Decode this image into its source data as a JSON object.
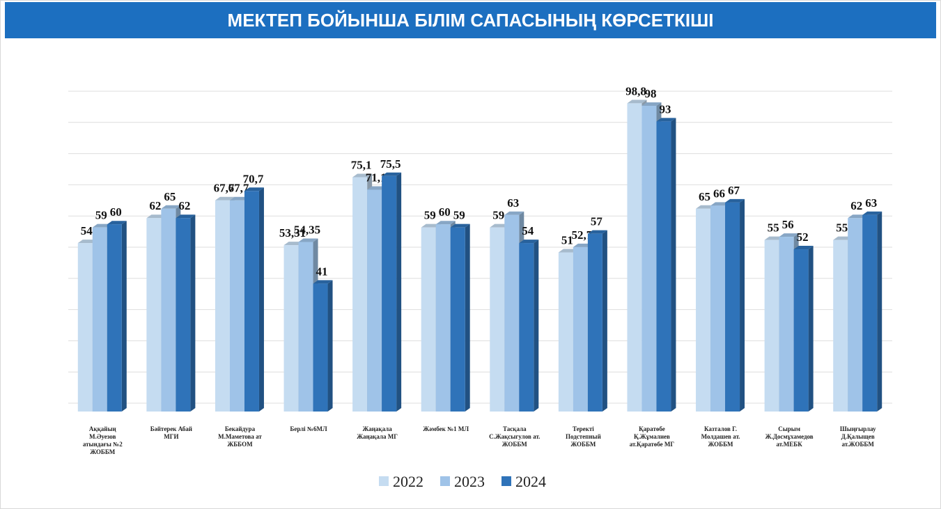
{
  "chart_data": {
    "type": "bar",
    "title": "МЕКТЕП БОЙЫНША БІЛІМ САПАСЫНЫҢ КӨРСЕТКІШІ",
    "categories": [
      "Аққайың\nМ.Әуезов\nатындағы №2\nЖОББМ",
      "Бәйтерек Абай\nМГИ",
      "Бекайдура\nМ.Маметова ат\nЖББОМ",
      "Берлі №6МЛ",
      "Жаңақала\nЖаңақала МГ",
      "Жəмбек №1 МЛ",
      "Тасқала\nС.Жақсыгулов ат.\nЖОББМ",
      "Теректі\nПодстепный\nЖОББМ",
      "Қаратөбе\nҚ.Жұмалиев\nат.Қаратөбе МГ",
      "Казталов Г.\nМолдашев ат.\nЖОББМ",
      "Сырым\nЖ.Досмұхамедов\nат.МЕБК",
      "Шыңғырлау\nД.Қалыщев\nат.ЖОББМ"
    ],
    "series": [
      {
        "name": "2022",
        "color": "#c5dcf1",
        "values": [
          54,
          62,
          67.7,
          53.31,
          75.1,
          59,
          59,
          51,
          98.8,
          65,
          55,
          55
        ],
        "value_labels": [
          "54",
          "62",
          "67,7",
          "53,31",
          "75,1",
          "59",
          "59",
          "51",
          "98,8",
          "65",
          "55",
          "55"
        ]
      },
      {
        "name": "2023",
        "color": "#9fc3e8",
        "values": [
          59,
          65,
          67.7,
          54.35,
          71.1,
          60,
          63,
          52.7,
          98,
          66,
          56,
          62
        ],
        "value_labels": [
          "59",
          "65",
          "67,7",
          "54,35",
          "71,1",
          "60",
          "63",
          "52,7",
          "98",
          "66",
          "56",
          "62"
        ]
      },
      {
        "name": "2024",
        "color": "#2f73b9",
        "values": [
          60,
          62,
          70.7,
          41,
          75.5,
          59,
          54,
          57,
          93,
          67,
          52,
          63
        ],
        "value_labels": [
          "60",
          "62",
          "70,7",
          "41",
          "75,5",
          "59",
          "54",
          "57",
          "93",
          "67",
          "52",
          "63"
        ]
      }
    ],
    "ylim": [
      0,
      100
    ],
    "yticks": [
      0,
      10,
      20,
      30,
      40,
      50,
      60,
      70,
      80,
      90,
      100
    ],
    "grid": true,
    "legend": "bottom"
  }
}
